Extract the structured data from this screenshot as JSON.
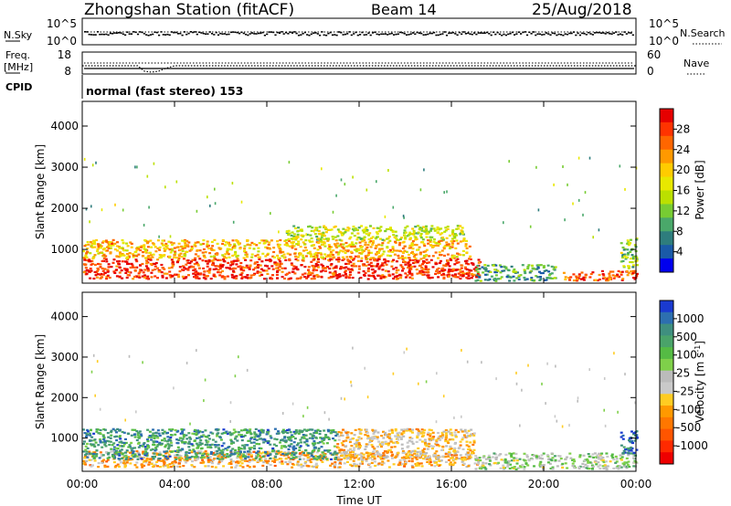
{
  "header": {
    "title": "Zhongshan Station (fitACF)",
    "beam": "Beam 14",
    "date": "25/Aug/2018"
  },
  "status": {
    "nsky_label": "N.Sky",
    "nsky_ticks": [
      "10^5",
      "10^0"
    ],
    "nsearch_label": "N.Search",
    "nsearch_ticks": [
      "10^5",
      "10^0"
    ],
    "freq_label": "Freq.",
    "freq_unit": "[MHz]",
    "freq_ticks": [
      "18",
      "8"
    ],
    "nave_label": "Nave",
    "nave_ticks": [
      "60",
      "0"
    ],
    "cpid_label": "CPID",
    "cpid_text": "normal (fast stereo) 153"
  },
  "axes": {
    "ylabel": "Slant Range [km]",
    "xlabel": "Time UT"
  },
  "colorbars": {
    "power": {
      "label": "Power [dB]",
      "ticks": [
        "28",
        "24",
        "20",
        "16",
        "12",
        "8",
        "4"
      ],
      "colors": [
        "#e60000",
        "#ff3300",
        "#ff6600",
        "#ff9900",
        "#ffcc00",
        "#e8e800",
        "#bbe000",
        "#77cc33",
        "#4aa86a",
        "#2e7d7d",
        "#1a5aa8",
        "#0000ee"
      ]
    },
    "velocity": {
      "label": "Velocity [m s",
      "label_sup": "-1",
      "label_close": "]",
      "ticks": [
        "1000",
        "500",
        "100",
        "25",
        "-25",
        "-100",
        "-500",
        "-1000"
      ],
      "colors": [
        "#1a3ad0",
        "#2d6fb0",
        "#3f8f7f",
        "#4aa36a",
        "#55bb44",
        "#7fd04a",
        "#bbbbbb",
        "#c9c9c9",
        "#ffcc22",
        "#ff9900",
        "#ff7700",
        "#ff5500",
        "#ff2a00",
        "#ee0000"
      ]
    }
  },
  "chart_data": [
    {
      "type": "heatmap",
      "title": "Power",
      "xlabel": "Time UT",
      "ylabel": "Slant Range [km]",
      "x_ticks": [
        "00:00",
        "04:00",
        "08:00",
        "12:00",
        "16:00",
        "20:00",
        "00:00"
      ],
      "x_range_hours": [
        0,
        24
      ],
      "y_ticks": [
        1000,
        2000,
        3000,
        4000
      ],
      "ylim": [
        180,
        4600
      ],
      "colorbar": {
        "label": "Power [dB]",
        "range": [
          0,
          30
        ],
        "ticks": [
          4,
          8,
          12,
          16,
          20,
          24,
          28
        ]
      },
      "regions": [
        {
          "t_start": 0.0,
          "t_end": 17.2,
          "range_low": 300,
          "range_high": 800,
          "power_db": 28
        },
        {
          "t_start": 0.0,
          "t_end": 16.8,
          "range_low": 800,
          "range_high": 1250,
          "power_db": 20
        },
        {
          "t_start": 8.8,
          "t_end": 16.5,
          "range_low": 1250,
          "range_high": 1600,
          "power_db": 14
        },
        {
          "t_start": 17.0,
          "t_end": 20.5,
          "range_low": 250,
          "range_high": 650,
          "power_db": 8
        },
        {
          "t_start": 20.8,
          "t_end": 24.0,
          "range_low": 250,
          "range_high": 500,
          "power_db": 26
        },
        {
          "t_start": 23.3,
          "t_end": 24.0,
          "range_low": 500,
          "range_high": 1300,
          "power_db": 12
        }
      ]
    },
    {
      "type": "heatmap",
      "title": "Velocity",
      "xlabel": "Time UT",
      "ylabel": "Slant Range [km]",
      "x_ticks": [
        "00:00",
        "04:00",
        "08:00",
        "12:00",
        "16:00",
        "20:00",
        "00:00"
      ],
      "x_range_hours": [
        0,
        24
      ],
      "y_ticks": [
        1000,
        2000,
        3000,
        4000
      ],
      "ylim": [
        180,
        4600
      ],
      "colorbar": {
        "label": "Velocity [m s-1]",
        "range": [
          -1000,
          1000
        ],
        "ticks": [
          1000,
          500,
          100,
          25,
          -25,
          -100,
          -500,
          -1000
        ]
      },
      "regions": [
        {
          "t_start": 0.0,
          "t_end": 17.2,
          "range_low": 300,
          "range_high": 700,
          "velocity": -300
        },
        {
          "t_start": 0.0,
          "t_end": 11.0,
          "range_low": 500,
          "range_high": 1250,
          "velocity": 600
        },
        {
          "t_start": 11.0,
          "t_end": 17.0,
          "range_low": 500,
          "range_high": 1250,
          "velocity": -200
        },
        {
          "t_start": 17.0,
          "t_end": 24.0,
          "range_low": 250,
          "range_high": 650,
          "velocity": 150
        },
        {
          "t_start": 23.3,
          "t_end": 24.0,
          "range_low": 600,
          "range_high": 1200,
          "velocity": 900
        }
      ]
    }
  ],
  "status_data": {
    "type": "line",
    "series": [
      {
        "name": "N.Sky",
        "note": "dense band near upper limit, 00:00-24:00"
      },
      {
        "name": "Freq.",
        "x_hours": [
          0,
          2.4,
          2.7,
          3.0,
          3.3,
          3.6,
          4.0,
          24
        ],
        "y_mhz": [
          12.0,
          12.0,
          9.0,
          8.5,
          9.0,
          10.5,
          12.0,
          12.0
        ]
      },
      {
        "name": "Nave",
        "note": "dotted line near upper limit, 00:00-24:00"
      }
    ]
  }
}
